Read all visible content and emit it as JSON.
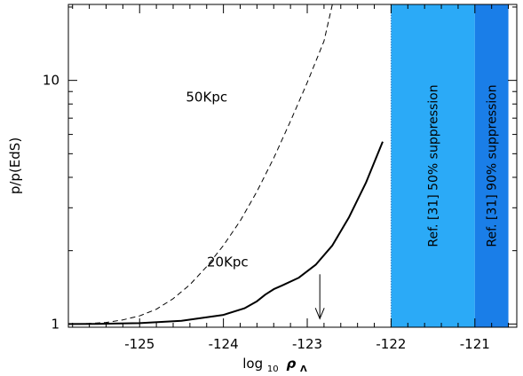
{
  "chart_data": {
    "type": "line",
    "xlabel_base": "log",
    "xlabel_sub": "10",
    "xlabel_symbol": "ρ",
    "xlabel_symbol_sub": "Λ",
    "ylabel": "p/p(EdS)",
    "xlim": [
      -125.85,
      -120.5
    ],
    "ylim": [
      0.97,
      20.5
    ],
    "yscale": "log",
    "xticks": [
      -125,
      -124,
      -123,
      -122,
      -121
    ],
    "xtick_labels": [
      "-125",
      "-124",
      "-123",
      "-122",
      "-121"
    ],
    "yticks": [
      1,
      10
    ],
    "ytick_labels": [
      "1",
      "10"
    ],
    "series": [
      {
        "name": "20Kpc",
        "style": "solid",
        "color": "#000000",
        "x": [
          -125.85,
          -125.5,
          -125.0,
          -124.5,
          -124.0,
          -123.75,
          -123.6,
          -123.5,
          -123.4,
          -123.3,
          -123.1,
          -122.9,
          -122.7,
          -122.5,
          -122.3,
          -122.1
        ],
        "y": [
          1.0,
          1.001,
          1.008,
          1.03,
          1.09,
          1.16,
          1.24,
          1.32,
          1.39,
          1.44,
          1.55,
          1.75,
          2.1,
          2.75,
          3.8,
          5.6
        ]
      },
      {
        "name": "50Kpc",
        "style": "dashed",
        "color": "#000000",
        "x": [
          -125.85,
          -125.6,
          -125.4,
          -125.2,
          -125.0,
          -124.8,
          -124.6,
          -124.4,
          -124.2,
          -124.0,
          -123.8,
          -123.6,
          -123.4,
          -123.2,
          -123.0,
          -122.8,
          -122.7
        ],
        "y": [
          1.0,
          1.005,
          1.015,
          1.04,
          1.08,
          1.15,
          1.27,
          1.45,
          1.72,
          2.1,
          2.65,
          3.5,
          4.8,
          6.8,
          9.8,
          14.5,
          20.5
        ]
      }
    ],
    "bands": [
      {
        "x0": -122.0,
        "x1": -121.0,
        "color": "#2baaf7",
        "label": "Ref. [31] 50% suppression"
      },
      {
        "x0": -121.0,
        "x1": -120.6,
        "color": "#1a7ee8",
        "label": "Ref. [31] 90% suppression"
      }
    ],
    "arrow": {
      "x": -122.85,
      "y_from": 1.6,
      "y_to": 1.0
    },
    "labels": {
      "label_50": "50Kpc",
      "label_20": "20Kpc"
    }
  }
}
